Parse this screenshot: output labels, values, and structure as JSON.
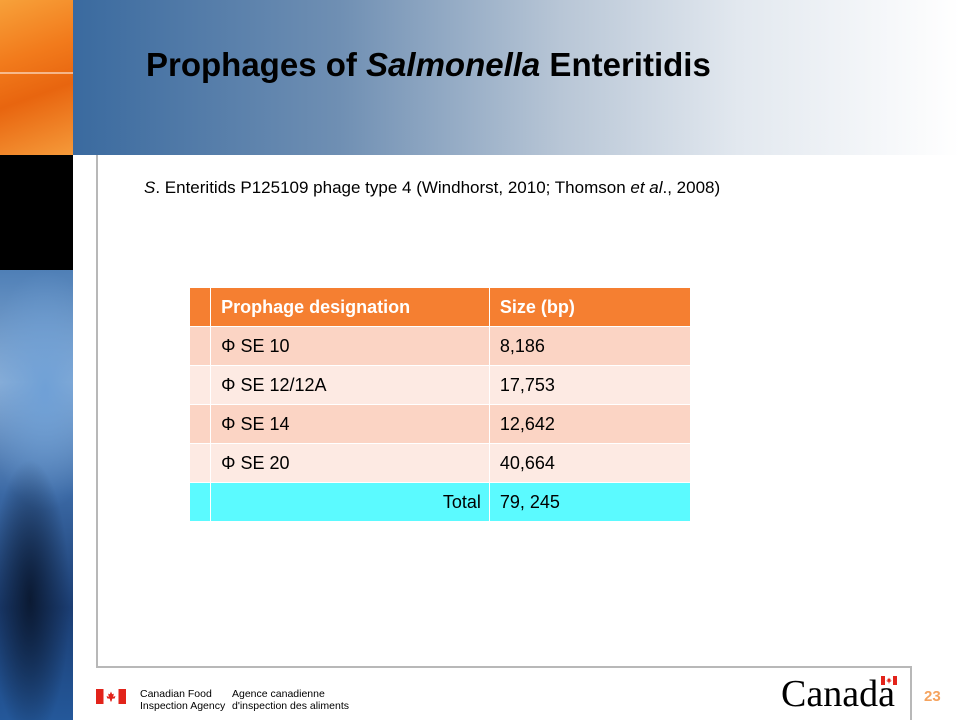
{
  "slide": {
    "title_part1": "Prophages of ",
    "title_italic": "Salmonella",
    "title_part2": " Enteritidis",
    "subtitle_italic_prefix": "S",
    "subtitle_part1": ". Enteritids P125109 phage type 4  (Windhorst, 2010; Thomson ",
    "subtitle_italic": "et al",
    "subtitle_part2": "., 2008)",
    "page_number": "23"
  },
  "table": {
    "headers": [
      "Prophage designation",
      "Size (bp)"
    ],
    "rows": [
      {
        "designation": "Φ SE 10",
        "size": "8,186"
      },
      {
        "designation": "Φ SE 12/12A",
        "size": "17,753"
      },
      {
        "designation": "Φ SE 14",
        "size": "12,642"
      },
      {
        "designation": "Φ SE 20",
        "size": "40,664"
      }
    ],
    "total_label": "Total",
    "total_value": "79, 245"
  },
  "footer": {
    "agency_en_line1": "Canadian Food",
    "agency_en_line2": "Inspection Agency",
    "agency_fr_line1": "Agence canadienne",
    "agency_fr_line2": "d'inspection des aliments",
    "wordmark": "Canada"
  },
  "colors": {
    "header_row": "#f57f31",
    "row_odd": "#fbd4c4",
    "row_even": "#fdeae3",
    "total_row": "#5bfaff",
    "page_number": "#f5a35e"
  }
}
